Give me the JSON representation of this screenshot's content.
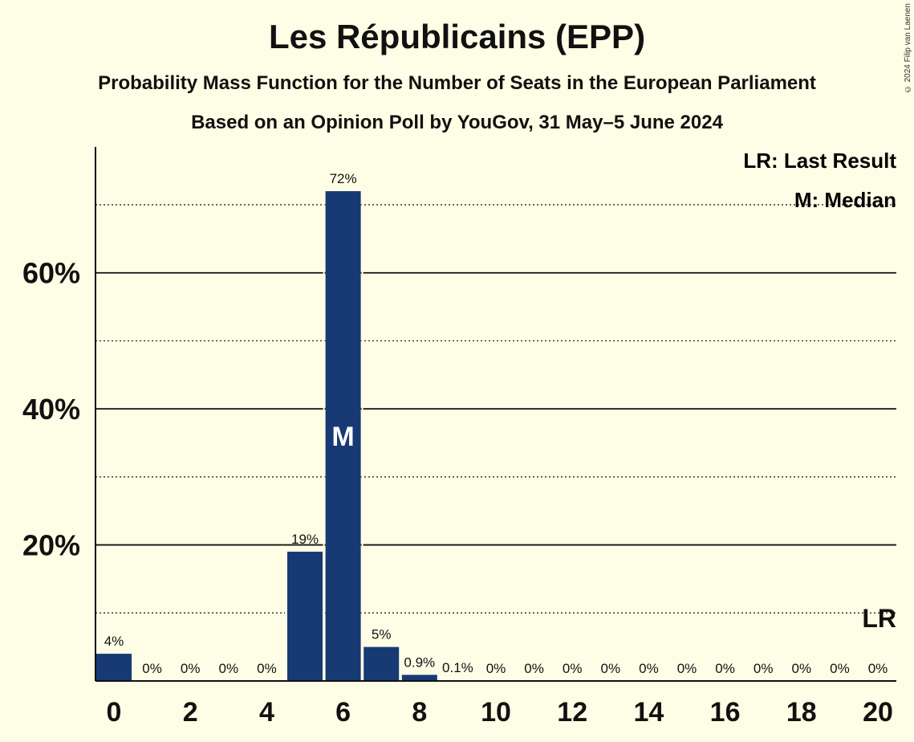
{
  "header": {
    "title": "Les Républicains (EPP)",
    "subtitle": "Probability Mass Function for the Number of Seats in the European Parliament",
    "subtitle2": "Based on an Opinion Poll by YouGov, 31 May–5 June 2024",
    "copyright": "© 2024 Filip van Laenen"
  },
  "legend": {
    "last_result": "LR: Last Result",
    "median": "M: Median"
  },
  "colors": {
    "background": "#fefde5",
    "bar": "#173a75",
    "text": "#111111"
  },
  "chart_data": {
    "type": "bar",
    "title": "Les Républicains (EPP)",
    "xlabel": "",
    "ylabel": "",
    "x": [
      0,
      1,
      2,
      3,
      4,
      5,
      6,
      7,
      8,
      9,
      10,
      11,
      12,
      13,
      14,
      15,
      16,
      17,
      18,
      19,
      20
    ],
    "values": [
      4,
      0,
      0,
      0,
      0,
      19,
      72,
      5,
      0.9,
      0.1,
      0,
      0,
      0,
      0,
      0,
      0,
      0,
      0,
      0,
      0,
      0
    ],
    "labels": [
      "4%",
      "0%",
      "0%",
      "0%",
      "0%",
      "19%",
      "72%",
      "5%",
      "0.9%",
      "0.1%",
      "0%",
      "0%",
      "0%",
      "0%",
      "0%",
      "0%",
      "0%",
      "0%",
      "0%",
      "0%",
      "0%"
    ],
    "x_tick_labels": [
      "0",
      "2",
      "4",
      "6",
      "8",
      "10",
      "12",
      "14",
      "16",
      "18",
      "20"
    ],
    "x_ticks": [
      0,
      2,
      4,
      6,
      8,
      10,
      12,
      14,
      16,
      18,
      20
    ],
    "y_tick_labels": [
      "20%",
      "40%",
      "60%"
    ],
    "y_ticks": [
      20,
      40,
      60
    ],
    "y_minor_ticks": [
      10,
      30,
      50,
      70
    ],
    "ylim": [
      0,
      78.5
    ],
    "xlim": [
      0,
      20
    ],
    "median": 6,
    "median_label": "M",
    "last_result": 20,
    "last_result_label": "LR",
    "grid": true,
    "legend_position": "top-right"
  }
}
